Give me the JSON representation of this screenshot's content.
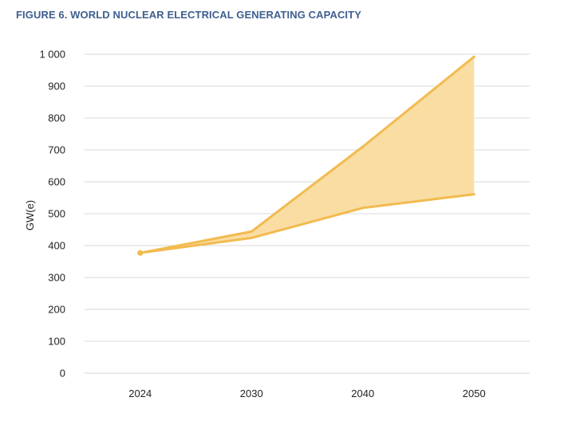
{
  "title": "FIGURE 6. WORLD NUCLEAR ELECTRICAL GENERATING CAPACITY",
  "chart_data": {
    "type": "area",
    "title": "FIGURE 6. WORLD NUCLEAR ELECTRICAL GENERATING CAPACITY",
    "xlabel": "",
    "ylabel": "GW(e)",
    "categories": [
      "2024",
      "2030",
      "2040",
      "2050"
    ],
    "series": [
      {
        "name": "",
        "values": [
          377,
          444,
          710,
          992
        ]
      },
      {
        "name": "",
        "values": [
          377,
          424,
          518,
          561
        ]
      }
    ],
    "ylim": [
      0,
      1000
    ],
    "y_ticks": [
      0,
      100,
      200,
      300,
      400,
      500,
      600,
      700,
      800,
      900,
      1000
    ],
    "y_tick_labels": [
      "0",
      "100",
      "200",
      "300",
      "400",
      "500",
      "600",
      "700",
      "800",
      "900",
      "1 000"
    ],
    "grid": true,
    "legend": "none",
    "colors": {
      "line": "#f2bb4f",
      "fill": "#f9dda3",
      "grid": "#d9d9d9",
      "title": "#3f5f8f"
    }
  }
}
